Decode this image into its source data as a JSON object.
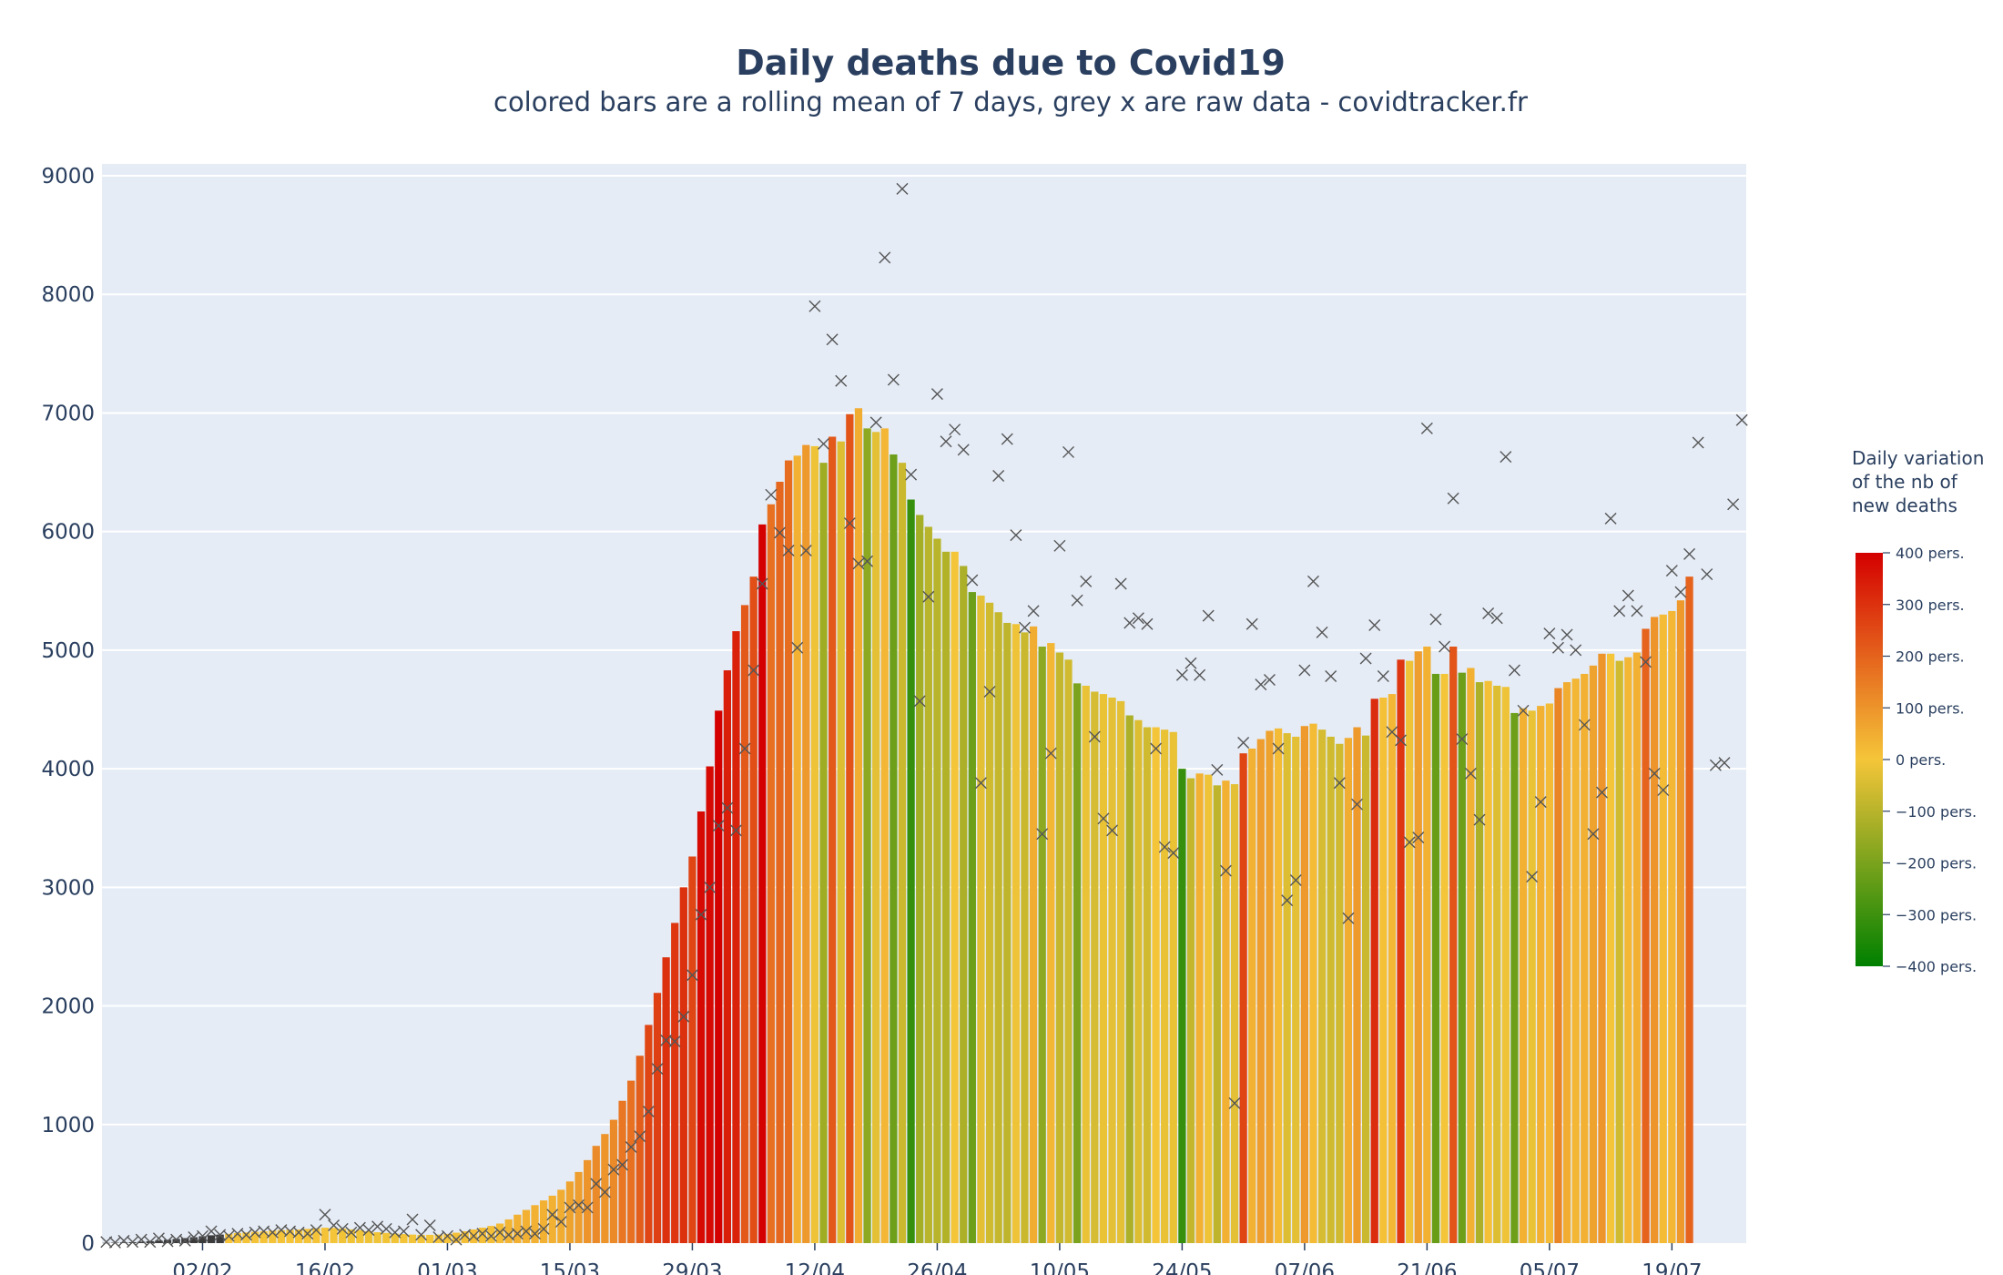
{
  "chart_data": {
    "type": "bar",
    "title": "Daily deaths due to Covid19",
    "subtitle": "colored bars are a rolling mean of 7 days, grey x are raw data - covidtracker.fr",
    "xlabel": "",
    "ylabel": "",
    "ylim": [
      0,
      9100
    ],
    "yticks": [
      0,
      1000,
      2000,
      3000,
      4000,
      5000,
      6000,
      7000,
      8000,
      9000
    ],
    "xticks": [
      "02/02",
      "16/02",
      "01/03",
      "15/03",
      "29/03",
      "12/04",
      "26/04",
      "10/05",
      "24/05",
      "07/06",
      "21/06",
      "05/07",
      "19/07"
    ],
    "xtick_day_index": [
      11,
      25,
      39,
      53,
      67,
      81,
      95,
      109,
      123,
      137,
      151,
      165,
      179
    ],
    "n_days": 182,
    "grid": true,
    "colorbar": {
      "title_lines": [
        "Daily variation",
        "of the nb of",
        "new deaths"
      ],
      "range": [
        -400,
        400
      ],
      "ticks": [
        400,
        300,
        200,
        100,
        0,
        -100,
        -200,
        -300,
        -400
      ],
      "tick_labels": [
        "400 pers.",
        "300 pers.",
        "200 pers.",
        "100 pers.",
        "0 pers.",
        "−100 pers.",
        "−200 pers.",
        "−300 pers.",
        "−400 pers."
      ],
      "colors": [
        "#008000",
        "#f5c539",
        "#d40000"
      ]
    },
    "series": [
      {
        "name": "colored bars are a rolling mean of 7 days",
        "kind": "bar",
        "values": [
          2,
          4,
          6,
          8,
          12,
          16,
          22,
          28,
          35,
          42,
          50,
          58,
          66,
          72,
          78,
          85,
          90,
          95,
          100,
          105,
          110,
          112,
          115,
          120,
          125,
          130,
          128,
          122,
          116,
          110,
          100,
          92,
          86,
          80,
          76,
          72,
          70,
          70,
          72,
          78,
          88,
          100,
          115,
          130,
          145,
          165,
          200,
          240,
          280,
          320,
          360,
          400,
          450,
          520,
          600,
          700,
          820,
          920,
          1040,
          1200,
          1370,
          1580,
          1840,
          2110,
          2410,
          2700,
          3000,
          3260,
          3640,
          4020,
          4490,
          4830,
          5160,
          5380,
          5620,
          6060,
          6230,
          6420,
          6600,
          6640,
          6730,
          6720,
          6580,
          6800,
          6760,
          6990,
          7040,
          6870,
          6840,
          6870,
          6650,
          6580,
          6270,
          6140,
          6040,
          5940,
          5830,
          5830,
          5710,
          5490,
          5460,
          5400,
          5320,
          5230,
          5220,
          5150,
          5200,
          5030,
          5060,
          4980,
          4920,
          4720,
          4700,
          4650,
          4630,
          4600,
          4570,
          4450,
          4410,
          4350,
          4350,
          4330,
          4310,
          4000,
          3920,
          3960,
          3950,
          3860,
          3900,
          3870,
          4130,
          4170,
          4250,
          4320,
          4340,
          4300,
          4270,
          4360,
          4380,
          4330,
          4270,
          4210,
          4260,
          4350,
          4280,
          4590,
          4600,
          4630,
          4920,
          4910,
          4990,
          5030,
          4800,
          4800,
          5030,
          4810,
          4850,
          4730,
          4740,
          4700,
          4690,
          4470,
          4510,
          4490,
          4530,
          4550,
          4680,
          4730,
          4760,
          4800,
          4870,
          4970,
          4970,
          4910,
          4940,
          4980,
          5180,
          5280,
          5300,
          5330,
          5420,
          5620
        ],
        "variation": [
          0,
          1,
          2,
          2,
          4,
          4,
          6,
          6,
          7,
          7,
          8,
          8,
          8,
          6,
          6,
          7,
          5,
          5,
          5,
          5,
          5,
          2,
          3,
          5,
          5,
          5,
          -2,
          -6,
          -6,
          -6,
          -10,
          -8,
          -6,
          -6,
          -4,
          -4,
          -2,
          0,
          2,
          6,
          10,
          12,
          15,
          15,
          15,
          20,
          35,
          40,
          40,
          40,
          40,
          40,
          50,
          70,
          80,
          100,
          120,
          100,
          120,
          160,
          170,
          210,
          260,
          270,
          300,
          290,
          300,
          260,
          380,
          380,
          470,
          340,
          330,
          220,
          240,
          440,
          170,
          190,
          180,
          40,
          90,
          -10,
          -140,
          220,
          -40,
          230,
          50,
          -170,
          -30,
          30,
          -220,
          -70,
          -310,
          -130,
          -100,
          -100,
          -110,
          0,
          -120,
          -220,
          -30,
          -60,
          -80,
          -90,
          -10,
          -70,
          50,
          -170,
          30,
          -80,
          -60,
          -200,
          -20,
          -50,
          -20,
          -30,
          -30,
          -120,
          -40,
          -60,
          0,
          -20,
          -20,
          -310,
          -80,
          40,
          -10,
          -90,
          40,
          -30,
          260,
          40,
          80,
          70,
          20,
          -40,
          -30,
          90,
          20,
          -50,
          -60,
          -60,
          50,
          90,
          -70,
          310,
          10,
          30,
          290,
          -10,
          80,
          40,
          -230,
          0,
          230,
          -220,
          40,
          -120,
          10,
          -40,
          -10,
          -220,
          40,
          -20,
          40,
          20,
          130,
          50,
          30,
          40,
          70,
          100,
          0,
          -60,
          30,
          40,
          200,
          100,
          20,
          30,
          90,
          200
        ],
        "colors_note": "bar colour follows the colorbar from the variation value"
      },
      {
        "name": "grey x are raw data",
        "kind": "markers",
        "points": [
          [
            0,
            10
          ],
          [
            1,
            5
          ],
          [
            2,
            20
          ],
          [
            3,
            10
          ],
          [
            4,
            30
          ],
          [
            5,
            10
          ],
          [
            6,
            40
          ],
          [
            7,
            15
          ],
          [
            8,
            30
          ],
          [
            9,
            20
          ],
          [
            10,
            50
          ],
          [
            11,
            60
          ],
          [
            12,
            100
          ],
          [
            13,
            70
          ],
          [
            14,
            60
          ],
          [
            15,
            80
          ],
          [
            16,
            70
          ],
          [
            17,
            90
          ],
          [
            18,
            100
          ],
          [
            19,
            90
          ],
          [
            20,
            110
          ],
          [
            21,
            100
          ],
          [
            22,
            90
          ],
          [
            23,
            80
          ],
          [
            24,
            110
          ],
          [
            25,
            240
          ],
          [
            26,
            150
          ],
          [
            27,
            120
          ],
          [
            28,
            90
          ],
          [
            29,
            130
          ],
          [
            30,
            110
          ],
          [
            31,
            140
          ],
          [
            32,
            120
          ],
          [
            33,
            90
          ],
          [
            34,
            100
          ],
          [
            35,
            200
          ],
          [
            36,
            70
          ],
          [
            37,
            150
          ],
          [
            38,
            50
          ],
          [
            39,
            60
          ],
          [
            40,
            30
          ],
          [
            41,
            70
          ],
          [
            42,
            60
          ],
          [
            43,
            80
          ],
          [
            44,
            60
          ],
          [
            45,
            90
          ],
          [
            46,
            70
          ],
          [
            47,
            80
          ],
          [
            48,
            100
          ],
          [
            49,
            80
          ],
          [
            50,
            120
          ],
          [
            51,
            240
          ],
          [
            52,
            180
          ],
          [
            53,
            300
          ],
          [
            54,
            320
          ],
          [
            55,
            300
          ],
          [
            56,
            500
          ],
          [
            57,
            430
          ],
          [
            58,
            620
          ],
          [
            59,
            660
          ],
          [
            60,
            810
          ],
          [
            61,
            900
          ],
          [
            62,
            1110
          ],
          [
            63,
            1470
          ],
          [
            64,
            1710
          ],
          [
            65,
            1700
          ],
          [
            66,
            1910
          ],
          [
            67,
            2260
          ],
          [
            68,
            2770
          ],
          [
            69,
            3000
          ],
          [
            70,
            3520
          ],
          [
            71,
            3670
          ],
          [
            72,
            3480
          ],
          [
            73,
            4170
          ],
          [
            74,
            4830
          ],
          [
            75,
            5560
          ],
          [
            76,
            6310
          ],
          [
            77,
            5990
          ],
          [
            78,
            5840
          ],
          [
            79,
            5020
          ],
          [
            80,
            5840
          ],
          [
            81,
            7900
          ],
          [
            82,
            6740
          ],
          [
            83,
            7620
          ],
          [
            84,
            7270
          ],
          [
            85,
            6070
          ],
          [
            86,
            5730
          ],
          [
            87,
            5750
          ],
          [
            88,
            6920
          ],
          [
            89,
            8310
          ],
          [
            90,
            7280
          ],
          [
            91,
            8890
          ],
          [
            92,
            6480
          ],
          [
            93,
            4570
          ],
          [
            94,
            5450
          ],
          [
            95,
            7160
          ],
          [
            96,
            6760
          ],
          [
            97,
            6860
          ],
          [
            98,
            6690
          ],
          [
            99,
            5590
          ],
          [
            100,
            3880
          ],
          [
            101,
            4650
          ],
          [
            102,
            6470
          ],
          [
            103,
            6780
          ],
          [
            104,
            5970
          ],
          [
            105,
            5190
          ],
          [
            106,
            5330
          ],
          [
            107,
            3450
          ],
          [
            108,
            4130
          ],
          [
            109,
            5880
          ],
          [
            110,
            6670
          ],
          [
            111,
            5420
          ],
          [
            112,
            5580
          ],
          [
            113,
            4270
          ],
          [
            114,
            3580
          ],
          [
            115,
            3480
          ],
          [
            116,
            5560
          ],
          [
            117,
            5230
          ],
          [
            118,
            5270
          ],
          [
            119,
            5220
          ],
          [
            120,
            4170
          ],
          [
            121,
            3340
          ],
          [
            122,
            3290
          ],
          [
            123,
            4790
          ],
          [
            124,
            4890
          ],
          [
            125,
            4790
          ],
          [
            126,
            5290
          ],
          [
            127,
            3990
          ],
          [
            128,
            3140
          ],
          [
            129,
            1180
          ],
          [
            130,
            4220
          ],
          [
            131,
            5220
          ],
          [
            132,
            4710
          ],
          [
            133,
            4750
          ],
          [
            134,
            4170
          ],
          [
            135,
            2890
          ],
          [
            136,
            3060
          ],
          [
            137,
            4830
          ],
          [
            138,
            5580
          ],
          [
            139,
            5150
          ],
          [
            140,
            4780
          ],
          [
            141,
            3880
          ],
          [
            142,
            2740
          ],
          [
            143,
            3700
          ],
          [
            144,
            4930
          ],
          [
            145,
            5210
          ],
          [
            146,
            4780
          ],
          [
            147,
            4310
          ],
          [
            148,
            4240
          ],
          [
            149,
            3380
          ],
          [
            150,
            3420
          ],
          [
            151,
            6870
          ],
          [
            152,
            5260
          ],
          [
            153,
            5030
          ],
          [
            154,
            6280
          ],
          [
            155,
            4250
          ],
          [
            156,
            3960
          ],
          [
            157,
            3570
          ],
          [
            158,
            5310
          ],
          [
            159,
            5270
          ],
          [
            160,
            6630
          ],
          [
            161,
            4830
          ],
          [
            162,
            4490
          ],
          [
            163,
            3090
          ],
          [
            164,
            3720
          ],
          [
            165,
            5140
          ],
          [
            166,
            5020
          ],
          [
            167,
            5130
          ],
          [
            168,
            5000
          ],
          [
            169,
            4370
          ],
          [
            170,
            3450
          ],
          [
            171,
            3800
          ],
          [
            172,
            6110
          ],
          [
            173,
            5330
          ],
          [
            174,
            5460
          ],
          [
            175,
            5330
          ],
          [
            176,
            4900
          ],
          [
            177,
            3960
          ],
          [
            178,
            3820
          ],
          [
            179,
            5670
          ],
          [
            180,
            5490
          ],
          [
            181,
            5810
          ],
          [
            182,
            6750
          ],
          [
            183,
            5640
          ],
          [
            184,
            4030
          ],
          [
            185,
            4050
          ],
          [
            186,
            6230
          ],
          [
            187,
            6940
          ]
        ]
      }
    ]
  }
}
